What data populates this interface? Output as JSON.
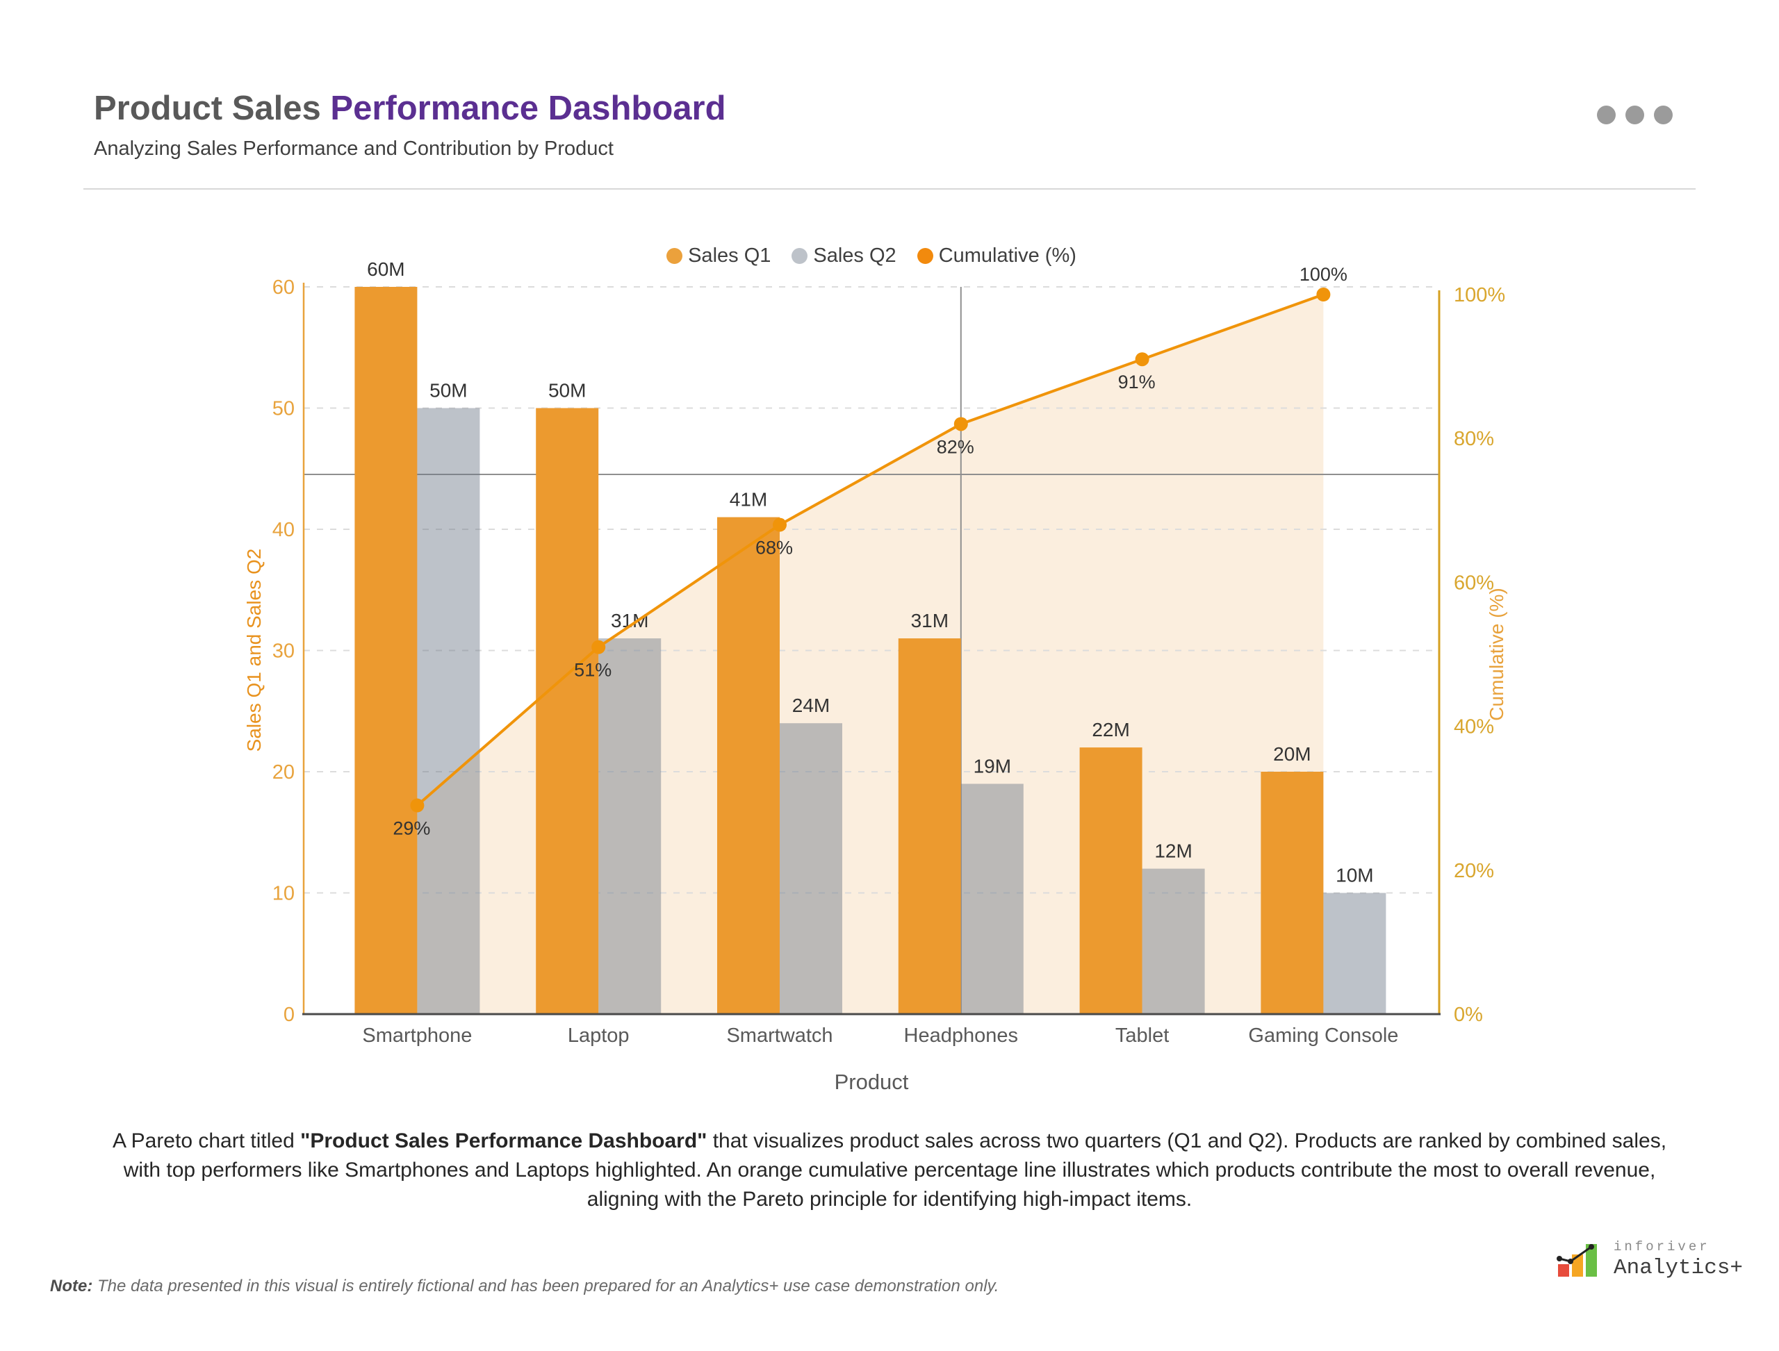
{
  "header": {
    "title_part1": "Product Sales ",
    "title_part2": "Performance Dashboard",
    "subtitle": "Analyzing Sales Performance and Contribution by Product"
  },
  "legend": {
    "items": [
      {
        "label": "Sales Q1",
        "color": "#EBA13C"
      },
      {
        "label": "Sales Q2",
        "color": "#BDC2C9"
      },
      {
        "label": "Cumulative (%)",
        "color": "#F28A0D"
      }
    ]
  },
  "chart_data": {
    "type": "bar",
    "subtype": "pareto-combo",
    "categories": [
      "Smartphone",
      "Laptop",
      "Smartwatch",
      "Headphones",
      "Tablet",
      "Gaming Console"
    ],
    "series": [
      {
        "name": "Sales Q1",
        "values": [
          60,
          50,
          41,
          31,
          22,
          20
        ],
        "labels": [
          "60M",
          "50M",
          "41M",
          "31M",
          "22M",
          "20M"
        ],
        "color": "#EC9A2F"
      },
      {
        "name": "Sales Q2",
        "values": [
          50,
          31,
          24,
          19,
          12,
          10
        ],
        "labels": [
          "50M",
          "31M",
          "24M",
          "19M",
          "12M",
          "10M"
        ],
        "color": "rgba(108,119,135,0.45)"
      }
    ],
    "cumulative": {
      "name": "Cumulative (%)",
      "values": [
        29,
        51,
        68,
        82,
        91,
        100
      ],
      "labels": [
        "29%",
        "51%",
        "68%",
        "82%",
        "91%",
        "100%"
      ],
      "line_color": "#F0940A",
      "area_color": "#FBEEDE"
    },
    "left_axis": {
      "title": "Sales Q1 and Sales Q2",
      "ticks": [
        0,
        10,
        20,
        30,
        40,
        50,
        60
      ],
      "max": 60,
      "color": "#E8A33D"
    },
    "right_axis": {
      "title": "Cumulative (%)",
      "ticks": [
        "0%",
        "20%",
        "40%",
        "60%",
        "80%",
        "100%"
      ],
      "tick_values": [
        0,
        20,
        40,
        60,
        80,
        100
      ],
      "max": 100,
      "line_color": "#D5A021",
      "tick_color": "#D9A62E"
    },
    "xlabel": "Product",
    "reference_lines": {
      "horizontal_pct": 75,
      "vertical_category": "Headphones",
      "color": "#8F8F8F"
    },
    "grid": {
      "show": true,
      "color": "#DCDCDC",
      "style": "dashed"
    },
    "label_color": "#333333",
    "category_label_color": "#595959",
    "baseline_color": "#4A4A4A",
    "legend_position": "top-center"
  },
  "description": {
    "seg1": "A Pareto chart titled ",
    "seg2_bold": "\"Product Sales Performance Dashboard\"",
    "seg3": " that visualizes product sales across two quarters (Q1 and Q2). Products are ranked by combined sales, with top performers like Smartphones and Laptops highlighted. An orange cumulative percentage line illustrates which products contribute the most to overall revenue, aligning with the Pareto principle for identifying high-impact items."
  },
  "note": {
    "label": "Note:",
    "text": " The data presented in this visual is entirely fictional and has been prepared for an Analytics+ use case demonstration only."
  },
  "logo": {
    "brand": "inforiver",
    "product": "Analytics+"
  }
}
